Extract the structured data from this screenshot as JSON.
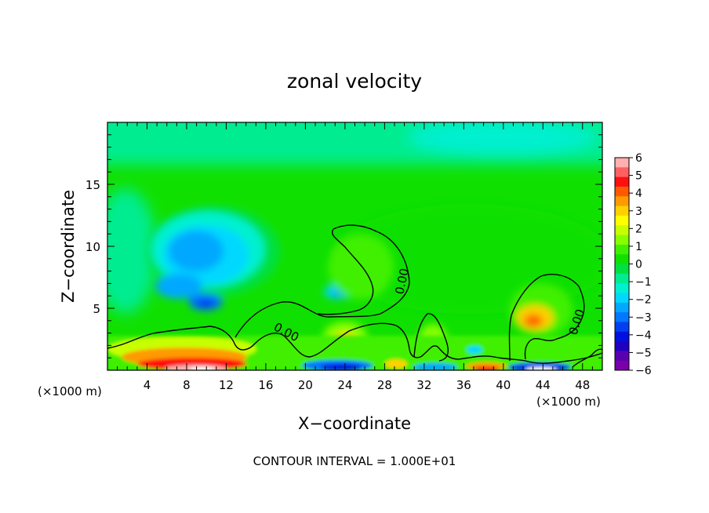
{
  "chart_data": {
    "type": "heatmap",
    "title": "zonal velocity",
    "xlabel": "X−coordinate",
    "ylabel": "Z−coordinate",
    "x_unit_left": "(×1000 m)",
    "x_unit_right": "(×1000 m)",
    "footer": "CONTOUR INTERVAL = 1.000E+01",
    "xlim": [
      0,
      50
    ],
    "ylim": [
      0,
      20
    ],
    "xticks": [
      4,
      8,
      12,
      16,
      20,
      24,
      28,
      32,
      36,
      40,
      44,
      48
    ],
    "yticks": [
      5,
      10,
      15
    ],
    "colorbar": {
      "ticks": [
        "6",
        "5",
        "4",
        "3",
        "2",
        "1",
        "0",
        "−1",
        "−2",
        "−3",
        "−4",
        "−5",
        "−6"
      ],
      "min": -6,
      "max": 6,
      "colors": [
        "#ffb0b0",
        "#ff6060",
        "#ff1010",
        "#ff5a00",
        "#ff9a00",
        "#ffd000",
        "#ffff00",
        "#c8ff00",
        "#88ff00",
        "#40f000",
        "#10e000",
        "#00e040",
        "#00ec90",
        "#00f0d0",
        "#00d8ff",
        "#00a8ff",
        "#0078ff",
        "#0040f0",
        "#0010e0",
        "#2000c0",
        "#5800b0",
        "#7a00a8"
      ]
    },
    "contour_labels": [
      "0.00",
      "0.00",
      "0.00"
    ],
    "contour_level": 0,
    "features": [
      {
        "x": 10,
        "z": 9,
        "value": -3.2
      },
      {
        "x": 10,
        "z": 5.2,
        "value": -4.3
      },
      {
        "x": 24,
        "z": 6.2,
        "value": -2.5
      },
      {
        "x": 43,
        "z": 3.8,
        "value": 3.3
      },
      {
        "x": 24,
        "z": 2.5,
        "value": 2.6
      },
      {
        "x": 10,
        "z": 0.3,
        "value": 6.2
      },
      {
        "x": 25,
        "z": 0.2,
        "value": -5.0
      },
      {
        "x": 44,
        "z": 0.2,
        "value": -5.5
      }
    ]
  }
}
